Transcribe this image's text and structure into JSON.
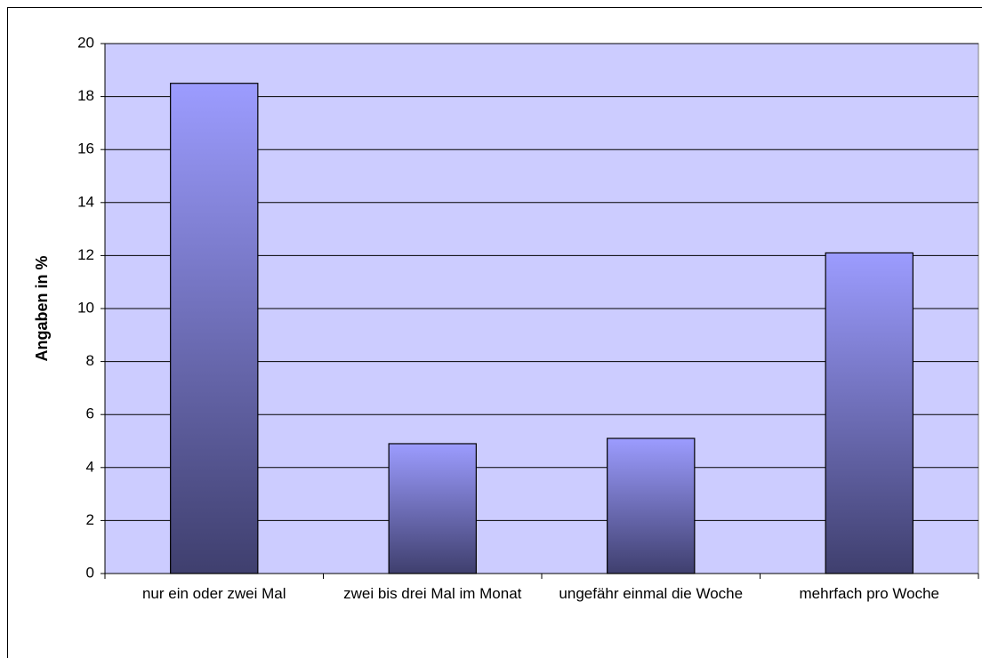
{
  "chart_data": {
    "type": "bar",
    "y_label": "Angaben in %",
    "categories": [
      "nur ein oder zwei Mal",
      "zwei bis drei Mal im Monat",
      "ungefähr einmal die Woche",
      "mehrfach pro Woche"
    ],
    "values": [
      18.5,
      4.9,
      5.1,
      12.1
    ],
    "color": "#9999ff",
    "ylim": [
      0,
      20
    ],
    "yticks": [
      0,
      2,
      4,
      6,
      8,
      10,
      12,
      14,
      16,
      18,
      20
    ],
    "grid": true
  }
}
